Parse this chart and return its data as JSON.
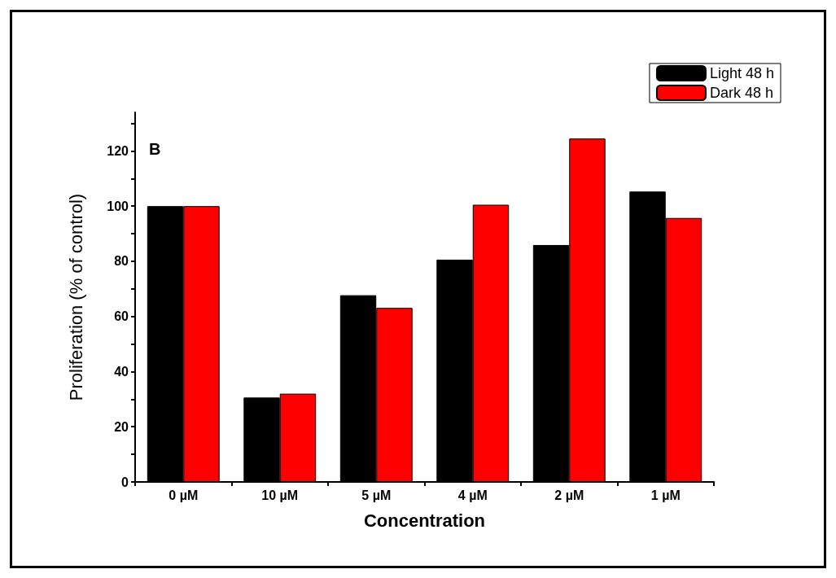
{
  "chart_data": {
    "type": "bar",
    "xlabel": "Concentration",
    "ylabel": "Proliferation (% of control)",
    "annotations": [
      "B"
    ],
    "categories": [
      "0 µM",
      "10 µM",
      "5 µM",
      "4 µM",
      "2 µM",
      "1 µM"
    ],
    "series": [
      {
        "name": "Light 48 h",
        "color": "#000000",
        "values": [
          100,
          30.6,
          67.7,
          80.6,
          85.9,
          105.3
        ]
      },
      {
        "name": "Dark 48 h",
        "color": "#ff0000",
        "values": [
          100,
          32,
          63.1,
          100.5,
          124.5,
          95.7
        ]
      }
    ],
    "ylim": [
      0,
      134
    ],
    "yticks": [
      0,
      {
        "value": 10,
        "label": null
      },
      20,
      {
        "value": 30,
        "label": null
      },
      40,
      {
        "value": 50,
        "label": null
      },
      60,
      {
        "value": 70,
        "label": null
      },
      80,
      {
        "value": 90,
        "label": null
      },
      100,
      {
        "value": 110,
        "label": null
      },
      120,
      {
        "value": 130,
        "label": null
      }
    ],
    "grid": false,
    "legend": "top right"
  }
}
